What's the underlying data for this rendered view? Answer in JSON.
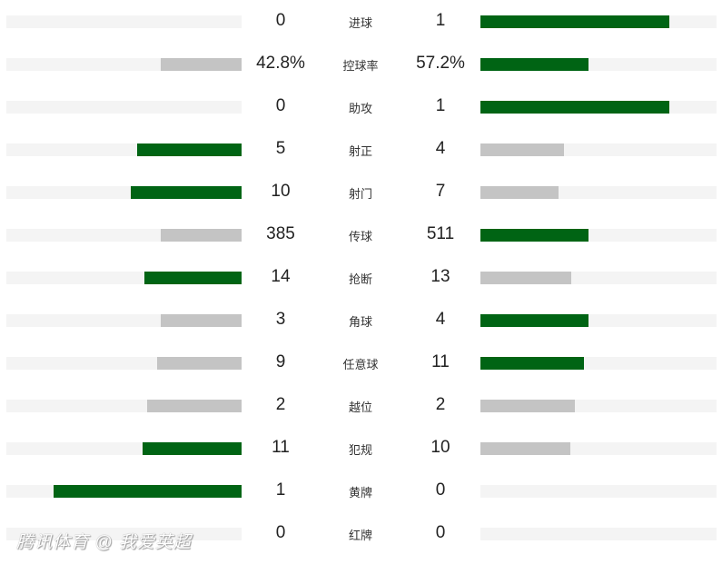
{
  "colors": {
    "winner": "#006414",
    "other": "#c4c4c4",
    "track": "#f4f4f4"
  },
  "stats": [
    {
      "label": "进球",
      "left": "0",
      "right": "1",
      "lv": 0,
      "rv": 1
    },
    {
      "label": "控球率",
      "left": "42.8%",
      "right": "57.2%",
      "lv": 42.8,
      "rv": 57.2
    },
    {
      "label": "助攻",
      "left": "0",
      "right": "1",
      "lv": 0,
      "rv": 1
    },
    {
      "label": "射正",
      "left": "5",
      "right": "4",
      "lv": 5,
      "rv": 4
    },
    {
      "label": "射门",
      "left": "10",
      "right": "7",
      "lv": 10,
      "rv": 7
    },
    {
      "label": "传球",
      "left": "385",
      "right": "511",
      "lv": 385,
      "rv": 511
    },
    {
      "label": "抢断",
      "left": "14",
      "right": "13",
      "lv": 14,
      "rv": 13
    },
    {
      "label": "角球",
      "left": "3",
      "right": "4",
      "lv": 3,
      "rv": 4
    },
    {
      "label": "任意球",
      "left": "9",
      "right": "11",
      "lv": 9,
      "rv": 11
    },
    {
      "label": "越位",
      "left": "2",
      "right": "2",
      "lv": 2,
      "rv": 2
    },
    {
      "label": "犯规",
      "left": "11",
      "right": "10",
      "lv": 11,
      "rv": 10
    },
    {
      "label": "黄牌",
      "left": "1",
      "right": "0",
      "lv": 1,
      "rv": 0
    },
    {
      "label": "红牌",
      "left": "0",
      "right": "0",
      "lv": 0,
      "rv": 0
    }
  ],
  "watermark": "腾讯体育 @ 我爱英超"
}
